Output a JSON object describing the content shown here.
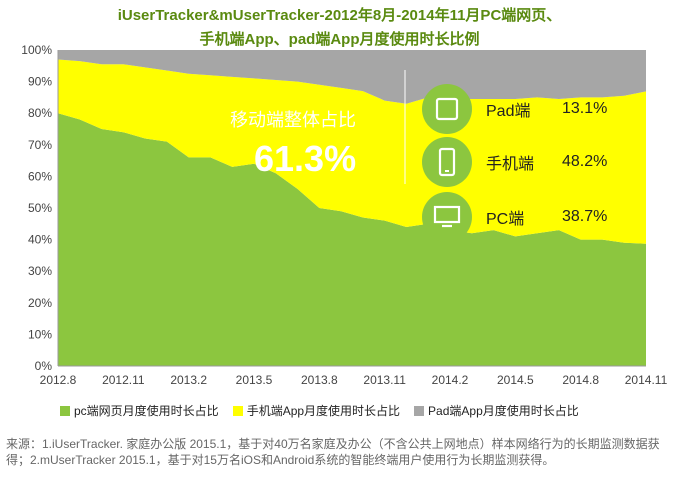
{
  "title_line1": "iUserTracker&mUserTracker-2012年8月-2014年11月PC端网页、",
  "title_line2": "手机端App、pad端App月度使用时长比例",
  "overlay": {
    "mobile_label": "移动端整体占比",
    "mobile_value": "61.3%",
    "stats": [
      {
        "name": "Pad端",
        "value": "13.1%",
        "icon": "tablet-icon"
      },
      {
        "name": "手机端",
        "value": "48.2%",
        "icon": "phone-icon"
      },
      {
        "name": "PC端",
        "value": "38.7%",
        "icon": "monitor-icon"
      }
    ]
  },
  "legend": [
    {
      "label": "pc端网页月度使用时长占比",
      "color": "#8cc63f"
    },
    {
      "label": "手机端App月度使用时长占比",
      "color": "#ffff00"
    },
    {
      "label": "Pad端App月度使用时长占比",
      "color": "#a6a6a6"
    }
  ],
  "source_text": "来源：1.iUserTracker. 家庭办公版 2015.1，基于对40万名家庭及办公（不含公共上网地点）样本网络行为的长期监测数据获得；2.mUserTracker 2015.1，基于对15万名iOS和Android系统的智能终端用户使用行为长期监测获得。",
  "chart_data": {
    "type": "area",
    "stacked": true,
    "x": [
      "2012.8",
      "2012.9",
      "2012.10",
      "2012.11",
      "2012.12",
      "2013.1",
      "2013.2",
      "2013.3",
      "2013.4",
      "2013.5",
      "2013.6",
      "2013.7",
      "2013.8",
      "2013.9",
      "2013.10",
      "2013.11",
      "2013.12",
      "2014.1",
      "2014.2",
      "2014.3",
      "2014.4",
      "2014.5",
      "2014.6",
      "2014.7",
      "2014.8",
      "2014.9",
      "2014.10",
      "2014.11"
    ],
    "x_tick_labels": [
      "2012.8",
      "2012.11",
      "2013.2",
      "2013.5",
      "2013.8",
      "2013.11",
      "2014.2",
      "2014.5",
      "2014.8",
      "2014.11"
    ],
    "series": [
      {
        "name": "pc端网页月度使用时长占比",
        "color": "#8cc63f",
        "values": [
          80,
          78,
          75,
          74,
          72,
          71,
          66,
          66,
          63,
          64,
          61,
          56,
          50,
          49,
          47,
          46,
          44,
          45,
          43,
          42,
          43,
          41,
          42,
          43,
          40,
          40,
          39,
          38.7
        ]
      },
      {
        "name": "手机端App月度使用时长占比",
        "color": "#ffff00",
        "values": [
          17,
          18.5,
          20.5,
          21.5,
          22.5,
          22.5,
          26.5,
          26,
          28.5,
          27,
          29.5,
          34,
          39,
          39,
          40,
          38,
          39,
          40,
          41.5,
          42.5,
          41.5,
          43.5,
          43,
          41.5,
          45,
          45,
          46.5,
          48.2
        ]
      },
      {
        "name": "Pad端App月度使用时长占比",
        "color": "#a6a6a6",
        "values": [
          3,
          3.5,
          4.5,
          4.5,
          5.5,
          6.5,
          7.5,
          8,
          8.5,
          9,
          9.5,
          10,
          11,
          12,
          13,
          16,
          17,
          15,
          15.5,
          15.5,
          15.5,
          15.5,
          15,
          15.5,
          15,
          15,
          14.5,
          13.1
        ]
      }
    ],
    "ylim": [
      0,
      100
    ],
    "y_tick_labels": [
      "0%",
      "10%",
      "20%",
      "30%",
      "40%",
      "50%",
      "60%",
      "70%",
      "80%",
      "90%",
      "100%"
    ],
    "grid": false,
    "legend_position": "bottom"
  }
}
